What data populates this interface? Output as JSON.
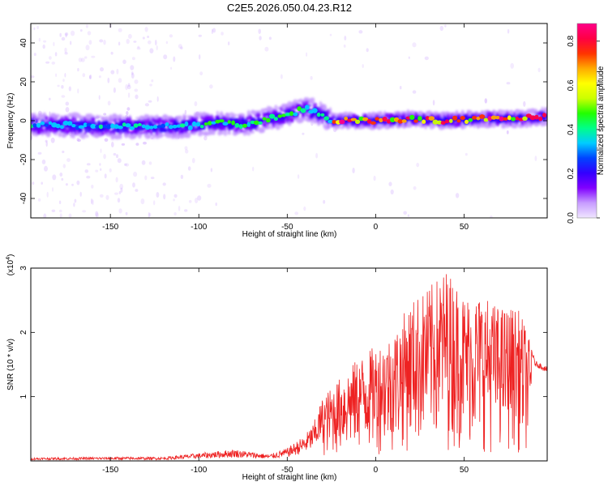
{
  "title": "C2E5.2026.050.04.23.R12",
  "chart_data": [
    {
      "type": "heatmap",
      "name": "spectrogram",
      "xlabel": "Height of straight line (km)",
      "ylabel": "Frequency (Hz)",
      "xlim": [
        -195,
        97
      ],
      "ylim": [
        -50,
        50
      ],
      "xticks": [
        -150,
        -100,
        -50,
        0,
        50
      ],
      "yticks": [
        -40,
        -20,
        0,
        20,
        40
      ],
      "ridge": {
        "x": [
          -195,
          -150,
          -110,
          -90,
          -75,
          -60,
          -50,
          -40,
          -35,
          -30,
          -25,
          -10,
          0,
          20,
          40,
          60,
          80,
          95
        ],
        "freq": [
          -2,
          -3,
          -3,
          -1,
          -2,
          1,
          3,
          6,
          5,
          3,
          0,
          0,
          0,
          1,
          0,
          1,
          1,
          2
        ]
      },
      "colorbar": {
        "label": "Normalized spectral amplitude",
        "ticks": [
          0.0,
          0.2,
          0.4,
          0.6,
          0.8
        ],
        "tick_labels": [
          "0.0",
          "0.2",
          "0.4",
          "0.6",
          "0.8"
        ],
        "range": [
          0,
          0.88
        ],
        "colors": [
          "#f0e6ff",
          "#c79cff",
          "#8000ff",
          "#3300ff",
          "#0044ff",
          "#00ccff",
          "#00ff88",
          "#22ff00",
          "#ccff00",
          "#ffff00",
          "#ffaa00",
          "#ff3300",
          "#ff0044",
          "#ff0088"
        ]
      }
    },
    {
      "type": "line",
      "name": "snr",
      "xlabel": "Height of straight line (km)",
      "ylabel": "SNR (10 * v/v)",
      "multiplier": "(x10",
      "multiplier_exp": "4",
      "multiplier_close": ")",
      "xlim": [
        -195,
        97
      ],
      "ylim": [
        0,
        3
      ],
      "xticks": [
        -150,
        -100,
        -50,
        0,
        50
      ],
      "yticks": [
        1,
        2,
        3
      ],
      "line_color": "#ee2222",
      "envelope": {
        "x": [
          -195,
          -150,
          -120,
          -100,
          -80,
          -60,
          -50,
          -40,
          -35,
          -30,
          -20,
          -10,
          0,
          10,
          20,
          30,
          40,
          50,
          60,
          70,
          80,
          85,
          90,
          97
        ],
        "peak": [
          0.05,
          0.06,
          0.06,
          0.12,
          0.18,
          0.1,
          0.2,
          0.4,
          0.6,
          1.0,
          1.3,
          1.6,
          1.8,
          2.0,
          2.5,
          2.7,
          3.0,
          2.6,
          2.6,
          2.4,
          2.4,
          2.1,
          1.55,
          1.45
        ]
      }
    }
  ]
}
